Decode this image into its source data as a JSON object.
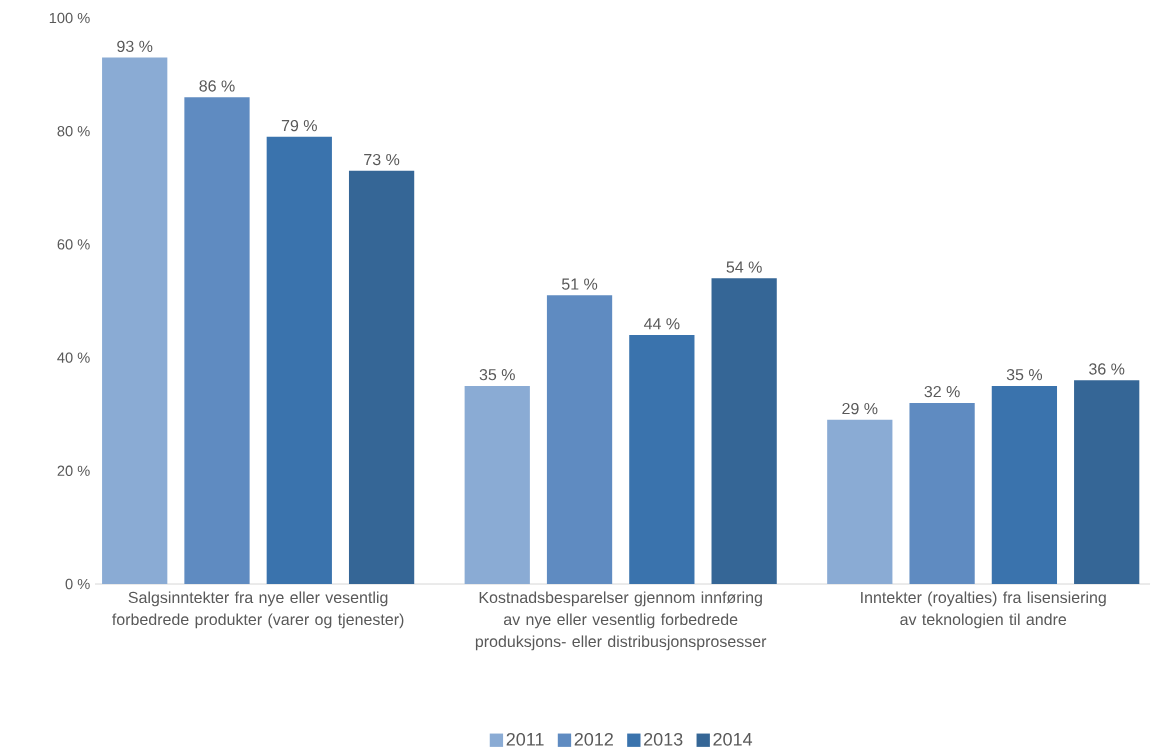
{
  "chart_data": {
    "type": "bar",
    "categories": [
      "Salgsinntekter fra nye eller vesentlig forbedrede produkter (varer og tjenester)",
      "Kostnadsbesparelser gjennom innføring av nye eller vesentlig forbedrede produksjons- eller distribusjonsprosesser",
      "Inntekter (royalties) fra lisensiering av teknologien til andre"
    ],
    "series": [
      {
        "name": "2011",
        "color": "#8aabd4",
        "values": [
          93,
          35,
          29
        ],
        "value_labels": [
          "93 %",
          "35 %",
          "29 %"
        ]
      },
      {
        "name": "2012",
        "color": "#5f8bc1",
        "values": [
          86,
          51,
          32
        ],
        "value_labels": [
          "86 %",
          "51 %",
          "32 %"
        ]
      },
      {
        "name": "2013",
        "color": "#3a73ad",
        "values": [
          79,
          44,
          35
        ],
        "value_labels": [
          "79 %",
          "44 %",
          "35 %"
        ]
      },
      {
        "name": "2014",
        "color": "#356696",
        "values": [
          73,
          54,
          36
        ],
        "value_labels": [
          "73 %",
          "54 %",
          "36 %"
        ]
      }
    ],
    "ylim": [
      0,
      100
    ],
    "yticks": [
      {
        "value": 0,
        "label": "0 %"
      },
      {
        "value": 20,
        "label": "20 %"
      },
      {
        "value": 40,
        "label": "40 %"
      },
      {
        "value": 60,
        "label": "60 %"
      },
      {
        "value": 80,
        "label": "80 %"
      },
      {
        "value": 100,
        "label": "100 %"
      }
    ],
    "grid": false,
    "legend": "bottom"
  }
}
